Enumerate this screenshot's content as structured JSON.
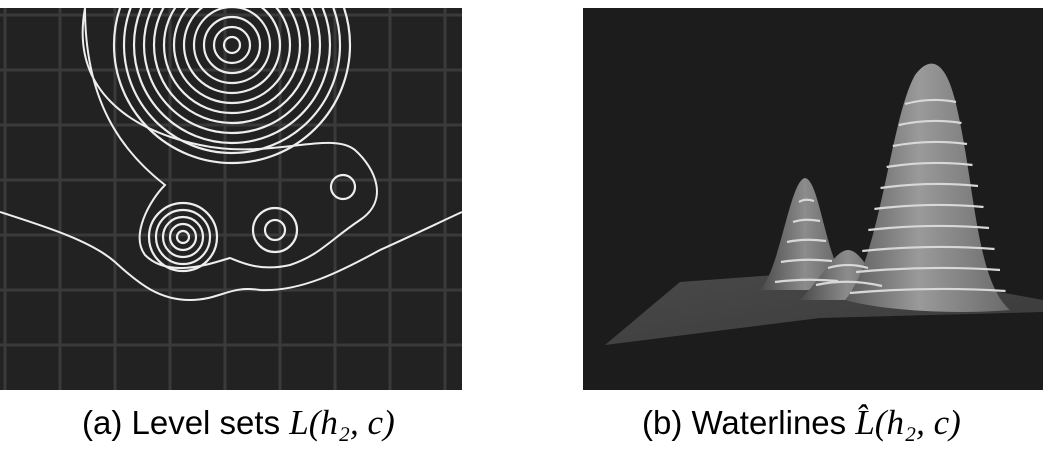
{
  "figure": {
    "panels": [
      {
        "label": "(a) Level sets",
        "math": "L(h₂, c)"
      },
      {
        "label": "(b) Waterlines",
        "math": "L̂(h₂, c)"
      }
    ]
  }
}
